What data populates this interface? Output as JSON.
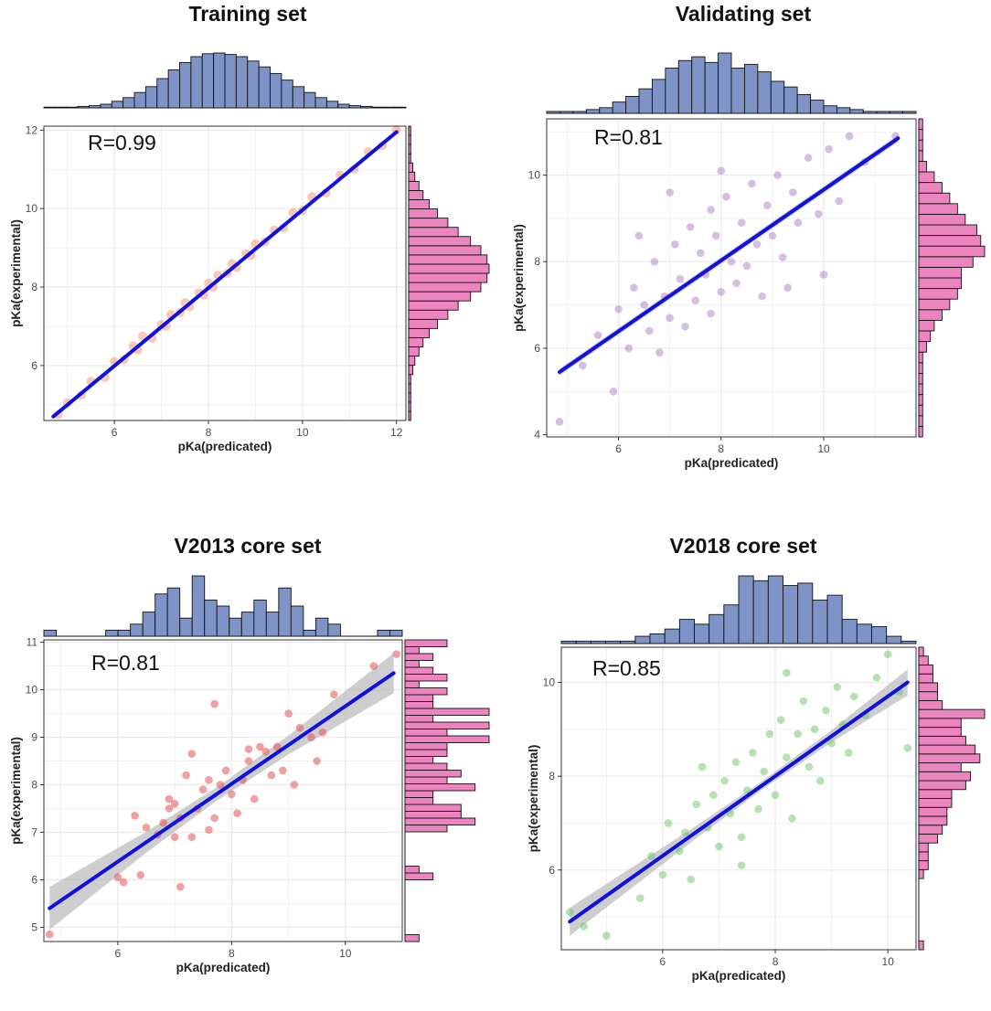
{
  "figure": {
    "colors": {
      "top_hist_fill": "#7f93c6",
      "right_hist_fill": "#ec84bf",
      "hist_stroke": "#111111",
      "fit_line": "#1010e0",
      "band": "#b9b9b9",
      "grid": "#ebebeb",
      "axis": "#333333"
    }
  },
  "chart_data": [
    {
      "type": "scatter",
      "title": "Training set",
      "annotation": "R=0.99",
      "xlabel": "pKa(predicated)",
      "ylabel": "pKa(experimental)",
      "xlim": [
        4.5,
        12.2
      ],
      "ylim": [
        4.6,
        12.1
      ],
      "xticks": [
        "6",
        "8",
        "10",
        "12"
      ],
      "yticks": [
        "6",
        "8",
        "10",
        "12"
      ],
      "point_color": "#f4845e",
      "point_opacity": 0.45,
      "fit": {
        "x": [
          4.7,
          12.0
        ],
        "y": [
          4.7,
          11.95
        ]
      },
      "band_halfwidth": 0.03,
      "points": [
        [
          5.0,
          5.05
        ],
        [
          5.3,
          5.25
        ],
        [
          5.5,
          5.6
        ],
        [
          5.8,
          5.7
        ],
        [
          6.0,
          6.1
        ],
        [
          6.2,
          6.15
        ],
        [
          6.4,
          6.5
        ],
        [
          6.5,
          6.4
        ],
        [
          6.6,
          6.75
        ],
        [
          6.8,
          6.7
        ],
        [
          7.0,
          7.05
        ],
        [
          7.1,
          7.0
        ],
        [
          7.2,
          7.3
        ],
        [
          7.4,
          7.35
        ],
        [
          7.5,
          7.6
        ],
        [
          7.6,
          7.5
        ],
        [
          7.8,
          7.85
        ],
        [
          7.9,
          7.8
        ],
        [
          8.0,
          8.1
        ],
        [
          8.1,
          8.0
        ],
        [
          8.2,
          8.3
        ],
        [
          8.4,
          8.35
        ],
        [
          8.5,
          8.6
        ],
        [
          8.6,
          8.5
        ],
        [
          8.8,
          8.85
        ],
        [
          8.9,
          8.8
        ],
        [
          9.0,
          9.1
        ],
        [
          9.2,
          9.15
        ],
        [
          9.4,
          9.45
        ],
        [
          9.6,
          9.5
        ],
        [
          9.8,
          9.9
        ],
        [
          10.0,
          9.95
        ],
        [
          10.2,
          10.3
        ],
        [
          10.5,
          10.4
        ],
        [
          10.8,
          10.85
        ],
        [
          11.1,
          11.0
        ],
        [
          11.4,
          11.45
        ],
        [
          11.7,
          11.6
        ],
        [
          12.0,
          12.0
        ],
        [
          4.8,
          4.75
        ]
      ],
      "top_hist": {
        "range": [
          4.5,
          12.2
        ],
        "counts": [
          1,
          1,
          1,
          2,
          3,
          5,
          9,
          14,
          21,
          29,
          40,
          52,
          62,
          70,
          74,
          75,
          73,
          70,
          64,
          56,
          47,
          38,
          29,
          21,
          14,
          9,
          5,
          3,
          2,
          1,
          1,
          1
        ]
      },
      "right_hist": {
        "range": [
          4.6,
          12.1
        ],
        "counts": [
          1,
          1,
          1,
          1,
          1,
          2,
          3,
          5,
          7,
          10,
          14,
          19,
          24,
          30,
          35,
          38,
          39,
          38,
          35,
          30,
          24,
          19,
          14,
          10,
          7,
          5,
          3,
          2,
          1,
          1,
          1,
          1
        ]
      }
    },
    {
      "type": "scatter",
      "title": "Validating set",
      "annotation": "R=0.81",
      "xlabel": "pKa(predicated)",
      "ylabel": "pKa(experimental)",
      "xlim": [
        4.6,
        11.8
      ],
      "ylim": [
        3.95,
        11.3
      ],
      "xticks": [
        "6",
        "8",
        "10"
      ],
      "yticks": [
        "4",
        "6",
        "8",
        "10"
      ],
      "point_color": "#9b59b6",
      "point_opacity": 0.4,
      "fit": {
        "x": [
          4.85,
          11.45
        ],
        "y": [
          5.45,
          10.85
        ]
      },
      "band_halfwidth": 0.08,
      "points": [
        [
          4.85,
          4.3
        ],
        [
          5.3,
          5.6
        ],
        [
          5.6,
          6.3
        ],
        [
          5.9,
          5.0
        ],
        [
          6.0,
          6.9
        ],
        [
          6.2,
          6.0
        ],
        [
          6.3,
          7.4
        ],
        [
          6.5,
          7.0
        ],
        [
          6.6,
          6.4
        ],
        [
          6.7,
          8.0
        ],
        [
          6.9,
          7.2
        ],
        [
          7.0,
          6.7
        ],
        [
          7.1,
          8.4
        ],
        [
          7.2,
          7.6
        ],
        [
          7.3,
          6.5
        ],
        [
          7.4,
          8.8
        ],
        [
          7.5,
          7.1
        ],
        [
          7.6,
          8.2
        ],
        [
          7.7,
          7.7
        ],
        [
          7.8,
          9.2
        ],
        [
          7.8,
          6.8
        ],
        [
          7.9,
          8.6
        ],
        [
          8.0,
          7.3
        ],
        [
          8.1,
          9.5
        ],
        [
          8.2,
          8.0
        ],
        [
          8.3,
          7.5
        ],
        [
          8.4,
          8.9
        ],
        [
          8.5,
          7.9
        ],
        [
          8.6,
          9.8
        ],
        [
          8.7,
          8.4
        ],
        [
          8.8,
          7.2
        ],
        [
          8.9,
          9.3
        ],
        [
          9.0,
          8.6
        ],
        [
          9.1,
          10.0
        ],
        [
          9.2,
          8.1
        ],
        [
          9.4,
          9.6
        ],
        [
          9.5,
          8.9
        ],
        [
          9.7,
          10.4
        ],
        [
          9.9,
          9.1
        ],
        [
          10.1,
          10.6
        ],
        [
          10.3,
          9.4
        ],
        [
          10.5,
          10.9
        ],
        [
          10.0,
          7.7
        ],
        [
          6.4,
          8.6
        ],
        [
          7.0,
          9.6
        ],
        [
          8.0,
          10.1
        ],
        [
          9.3,
          7.4
        ],
        [
          6.8,
          5.9
        ],
        [
          10.8,
          10.3
        ],
        [
          11.4,
          10.9
        ]
      ],
      "top_hist": {
        "range": [
          4.6,
          11.8
        ],
        "counts": [
          1,
          1,
          1,
          2,
          3,
          6,
          9,
          13,
          18,
          24,
          28,
          30,
          27,
          32,
          24,
          26,
          22,
          17,
          14,
          10,
          7,
          4,
          3,
          2,
          1,
          1,
          1,
          1
        ]
      },
      "right_hist": {
        "range": [
          3.95,
          11.3
        ],
        "counts": [
          1,
          1,
          1,
          1,
          1,
          1,
          1,
          1,
          2,
          3,
          4,
          6,
          8,
          10,
          11,
          11,
          14,
          17,
          16,
          15,
          12,
          10,
          8,
          6,
          4,
          2,
          1,
          1,
          1,
          1
        ]
      }
    },
    {
      "type": "scatter",
      "title": "V2013 core set",
      "annotation": "R=0.81",
      "xlabel": "pKa(predicated)",
      "ylabel": "pKa(experimental)",
      "xlim": [
        4.7,
        11.0
      ],
      "ylim": [
        4.7,
        11.05
      ],
      "xticks": [
        "6",
        "8",
        "10"
      ],
      "yticks": [
        "5",
        "6",
        "7",
        "8",
        "9",
        "10",
        "11"
      ],
      "point_color": "#e35252",
      "point_opacity": 0.55,
      "fit": {
        "x": [
          4.8,
          10.85
        ],
        "y": [
          5.4,
          10.35
        ]
      },
      "band": {
        "x": [
          4.8,
          6.5,
          7.75,
          9.0,
          10.85
        ],
        "halfwidth": [
          0.45,
          0.22,
          0.14,
          0.2,
          0.42
        ]
      },
      "points": [
        [
          4.8,
          4.85
        ],
        [
          6.0,
          6.05
        ],
        [
          6.1,
          5.95
        ],
        [
          6.4,
          6.1
        ],
        [
          6.5,
          7.1
        ],
        [
          6.7,
          6.95
        ],
        [
          6.8,
          7.2
        ],
        [
          6.9,
          7.5
        ],
        [
          7.0,
          6.9
        ],
        [
          7.0,
          7.6
        ],
        [
          7.1,
          7.3
        ],
        [
          7.1,
          5.85
        ],
        [
          7.2,
          8.2
        ],
        [
          7.3,
          6.9
        ],
        [
          7.3,
          8.65
        ],
        [
          7.4,
          7.5
        ],
        [
          7.5,
          7.9
        ],
        [
          7.6,
          8.1
        ],
        [
          7.7,
          7.3
        ],
        [
          7.7,
          9.7
        ],
        [
          7.8,
          8.0
        ],
        [
          7.9,
          8.3
        ],
        [
          8.0,
          7.8
        ],
        [
          8.1,
          7.4
        ],
        [
          8.2,
          8.1
        ],
        [
          8.3,
          8.5
        ],
        [
          8.4,
          7.7
        ],
        [
          8.5,
          8.8
        ],
        [
          8.6,
          8.7
        ],
        [
          8.7,
          8.2
        ],
        [
          8.8,
          8.8
        ],
        [
          8.9,
          8.3
        ],
        [
          9.0,
          9.5
        ],
        [
          9.1,
          8.0
        ],
        [
          9.2,
          9.2
        ],
        [
          9.4,
          9.0
        ],
        [
          9.5,
          8.5
        ],
        [
          9.6,
          9.1
        ],
        [
          9.8,
          9.9
        ],
        [
          10.5,
          10.5
        ],
        [
          10.9,
          10.75
        ],
        [
          6.3,
          7.35
        ],
        [
          6.9,
          7.7
        ],
        [
          7.6,
          7.05
        ],
        [
          8.3,
          8.75
        ]
      ],
      "top_hist": {
        "range": [
          4.7,
          11.0
        ],
        "counts": [
          1,
          0,
          0,
          0,
          0,
          1,
          1,
          2,
          4,
          7,
          8,
          3,
          10,
          6,
          5,
          3,
          4,
          6,
          4,
          8,
          5,
          1,
          3,
          2,
          0,
          0,
          0,
          1,
          1
        ]
      },
      "right_hist": {
        "range": [
          4.7,
          11.05
        ],
        "counts": [
          1,
          0,
          0,
          0,
          0,
          0,
          0,
          0,
          0,
          2,
          1,
          0,
          0,
          0,
          0,
          0,
          3,
          5,
          4,
          4,
          2,
          2,
          5,
          3,
          4,
          3,
          2,
          3,
          3,
          6,
          3,
          6,
          2,
          6,
          2,
          2,
          3,
          1,
          3,
          2,
          1,
          2,
          1,
          3
        ]
      }
    },
    {
      "type": "scatter",
      "title": "V2018 core set",
      "annotation": "R=0.85",
      "xlabel": "pKa(predicated)",
      "ylabel": "pKa(experimental)",
      "xlim": [
        4.2,
        10.5
      ],
      "ylim": [
        4.3,
        10.75
      ],
      "xticks": [
        "6",
        "8",
        "10"
      ],
      "yticks": [
        "6",
        "8",
        "10"
      ],
      "point_color": "#5cbf57",
      "point_opacity": 0.45,
      "fit": {
        "x": [
          4.35,
          10.35
        ],
        "y": [
          4.9,
          10.0
        ]
      },
      "band": {
        "x": [
          4.35,
          6.5,
          7.75,
          9.0,
          10.35
        ],
        "halfwidth": [
          0.3,
          0.14,
          0.09,
          0.13,
          0.28
        ]
      },
      "points": [
        [
          4.35,
          5.1
        ],
        [
          4.6,
          4.8
        ],
        [
          5.0,
          4.6
        ],
        [
          5.6,
          5.4
        ],
        [
          5.8,
          6.3
        ],
        [
          6.0,
          5.9
        ],
        [
          6.1,
          7.0
        ],
        [
          6.3,
          6.4
        ],
        [
          6.4,
          6.8
        ],
        [
          6.5,
          5.8
        ],
        [
          6.6,
          7.4
        ],
        [
          6.8,
          6.9
        ],
        [
          6.9,
          7.6
        ],
        [
          7.0,
          6.5
        ],
        [
          7.1,
          7.9
        ],
        [
          7.2,
          7.2
        ],
        [
          7.3,
          8.3
        ],
        [
          7.4,
          6.7
        ],
        [
          7.5,
          7.7
        ],
        [
          7.6,
          8.5
        ],
        [
          7.7,
          7.3
        ],
        [
          7.8,
          8.1
        ],
        [
          7.9,
          8.9
        ],
        [
          8.0,
          7.6
        ],
        [
          8.1,
          9.2
        ],
        [
          8.2,
          8.4
        ],
        [
          8.3,
          7.1
        ],
        [
          8.4,
          8.9
        ],
        [
          8.5,
          9.6
        ],
        [
          8.6,
          8.2
        ],
        [
          8.7,
          9.0
        ],
        [
          8.8,
          7.9
        ],
        [
          8.9,
          9.4
        ],
        [
          9.0,
          8.7
        ],
        [
          9.1,
          9.9
        ],
        [
          9.2,
          9.1
        ],
        [
          9.3,
          8.5
        ],
        [
          9.4,
          9.7
        ],
        [
          9.6,
          9.3
        ],
        [
          9.8,
          10.1
        ],
        [
          10.0,
          10.6
        ],
        [
          10.2,
          9.8
        ],
        [
          10.35,
          8.6
        ],
        [
          7.4,
          6.1
        ],
        [
          8.2,
          10.2
        ],
        [
          6.7,
          8.2
        ]
      ],
      "top_hist": {
        "range": [
          4.2,
          10.5
        ],
        "counts": [
          1,
          1,
          1,
          1,
          1,
          3,
          4,
          6,
          10,
          8,
          12,
          16,
          28,
          26,
          28,
          24,
          25,
          18,
          20,
          10,
          8,
          7,
          3,
          1
        ]
      },
      "right_hist": {
        "range": [
          4.3,
          10.75
        ],
        "counts": [
          1,
          0,
          0,
          0,
          0,
          0,
          0,
          0,
          1,
          2,
          2,
          2,
          4,
          5,
          6,
          6,
          7,
          7,
          10,
          11,
          9,
          13,
          12,
          10,
          9,
          9,
          14,
          5,
          4,
          4,
          3,
          3,
          2,
          1
        ]
      }
    }
  ]
}
